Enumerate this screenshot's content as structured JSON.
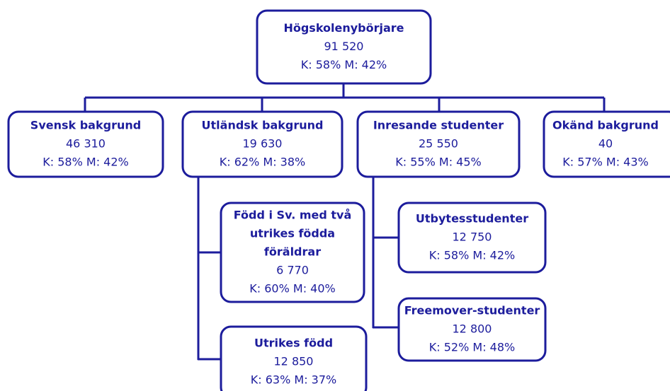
{
  "nodes": [
    {
      "title": [
        "Högskolenybörjare"
      ],
      "count": "91 520",
      "share": "K: 58% M: 42%"
    },
    {
      "title": [
        "Svensk bakgrund"
      ],
      "count": "46 310",
      "share": "K: 58% M: 42%"
    },
    {
      "title": [
        "Utländsk bakgrund"
      ],
      "count": "19 630",
      "share": "K: 62% M: 38%"
    },
    {
      "title": [
        "Inresande studenter"
      ],
      "count": "25 550",
      "share": "K: 55% M: 45%"
    },
    {
      "title": [
        "Okänd bakgrund"
      ],
      "count": "40",
      "share": "K: 57% M: 43%"
    },
    {
      "title": [
        "Född i Sv. med två",
        "utrikes födda",
        "föräldrar"
      ],
      "count": "6 770",
      "share": "K: 60% M: 40%"
    },
    {
      "title": [
        "Utrikes född"
      ],
      "count": "12 850",
      "share": "K: 63% M: 37%"
    },
    {
      "title": [
        "Utbytesstudenter"
      ],
      "count": "12 750",
      "share": "K: 58% M: 42%"
    },
    {
      "title": [
        "Freemover-studenter"
      ],
      "count": "12 800",
      "share": "K: 52% M: 48%"
    }
  ]
}
